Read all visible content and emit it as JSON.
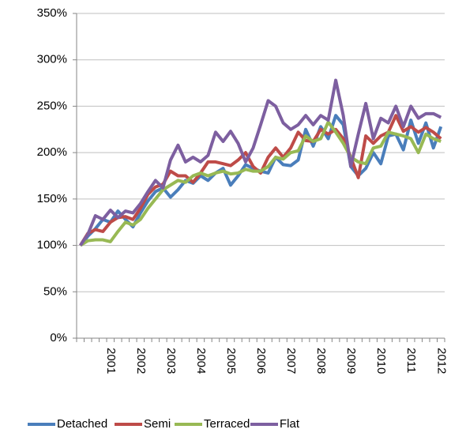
{
  "chart_data": {
    "type": "line",
    "categories": [
      null,
      null,
      null,
      null,
      "2001",
      null,
      null,
      null,
      "2002",
      null,
      null,
      null,
      "2003",
      null,
      null,
      null,
      "2004",
      null,
      null,
      null,
      "2005",
      null,
      null,
      null,
      "2006",
      null,
      null,
      null,
      "2007",
      null,
      null,
      null,
      "2008",
      null,
      null,
      null,
      "2009",
      null,
      null,
      null,
      "2010",
      null,
      null,
      null,
      "2011",
      null,
      null,
      null,
      "2012"
    ],
    "series": [
      {
        "name": "Detached",
        "color": "#4a7ebb",
        "values": [
          100,
          110,
          118,
          128,
          125,
          137,
          128,
          120,
          135,
          148,
          158,
          162,
          152,
          160,
          170,
          167,
          175,
          170,
          178,
          183,
          165,
          175,
          187,
          183,
          180,
          178,
          195,
          187,
          186,
          192,
          225,
          207,
          228,
          215,
          240,
          230,
          185,
          175,
          183,
          200,
          188,
          218,
          220,
          203,
          235,
          210,
          232,
          205,
          228
        ]
      },
      {
        "name": "Semi",
        "color": "#be4b48",
        "values": [
          100,
          113,
          117,
          115,
          125,
          130,
          131,
          128,
          140,
          155,
          163,
          166,
          180,
          175,
          175,
          168,
          178,
          190,
          190,
          188,
          186,
          192,
          200,
          185,
          178,
          195,
          205,
          195,
          205,
          222,
          213,
          212,
          225,
          220,
          225,
          215,
          195,
          173,
          218,
          210,
          218,
          222,
          240,
          223,
          228,
          222,
          227,
          222,
          215
        ]
      },
      {
        "name": "Terraced",
        "color": "#98b954",
        "values": [
          100,
          105,
          106,
          106,
          104,
          115,
          125,
          122,
          128,
          140,
          150,
          160,
          165,
          170,
          168,
          175,
          178,
          175,
          178,
          180,
          177,
          178,
          182,
          180,
          180,
          185,
          195,
          193,
          200,
          202,
          218,
          212,
          215,
          233,
          222,
          210,
          195,
          190,
          188,
          205,
          207,
          222,
          220,
          218,
          215,
          200,
          220,
          215,
          212
        ]
      },
      {
        "name": "Flat",
        "color": "#7d5fa0",
        "values": [
          100,
          112,
          132,
          128,
          138,
          130,
          137,
          135,
          145,
          158,
          170,
          162,
          192,
          208,
          190,
          195,
          190,
          197,
          222,
          212,
          223,
          210,
          190,
          205,
          230,
          256,
          250,
          232,
          225,
          230,
          240,
          230,
          240,
          235,
          278,
          240,
          185,
          220,
          253,
          215,
          237,
          232,
          250,
          228,
          250,
          237,
          242,
          242,
          238
        ]
      }
    ],
    "ylim": [
      0,
      350
    ],
    "yticks": [
      {
        "value": 0,
        "label": "0%"
      },
      {
        "value": 50,
        "label": "50%"
      },
      {
        "value": 100,
        "label": "100%"
      },
      {
        "value": 150,
        "label": "150%"
      },
      {
        "value": 200,
        "label": "200%"
      },
      {
        "value": 250,
        "label": "250%"
      },
      {
        "value": 300,
        "label": "300%"
      },
      {
        "value": 350,
        "label": "350%"
      }
    ],
    "grid": true,
    "legend": "bottom"
  }
}
